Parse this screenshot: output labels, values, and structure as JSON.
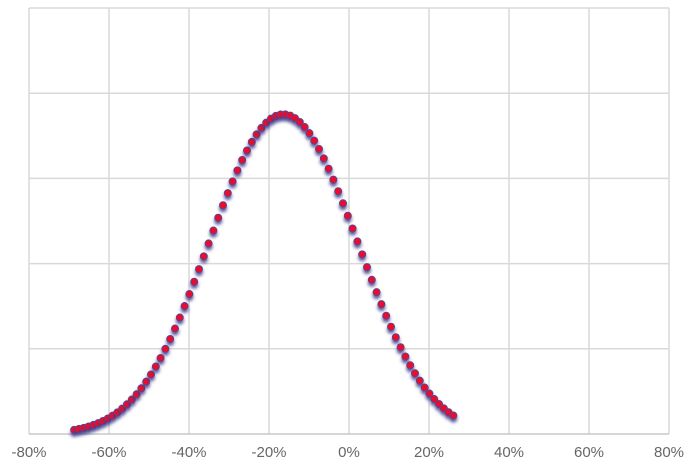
{
  "chart_data": {
    "type": "scatter",
    "title": "",
    "xlabel": "",
    "ylabel": "",
    "xlim": [
      -0.8,
      0.8
    ],
    "ylim": [
      0,
      1
    ],
    "x_ticks": [
      {
        "value": -0.8,
        "label": "-80%"
      },
      {
        "value": -0.6,
        "label": "-60%"
      },
      {
        "value": -0.4,
        "label": "-40%"
      },
      {
        "value": -0.2,
        "label": "-20%"
      },
      {
        "value": 0.0,
        "label": "0%"
      },
      {
        "value": 0.2,
        "label": "20%"
      },
      {
        "value": 0.4,
        "label": "40%"
      },
      {
        "value": 0.6,
        "label": "60%"
      },
      {
        "value": 0.8,
        "label": "80%"
      }
    ],
    "y_gridlines": [
      0,
      0.2,
      0.4,
      0.6,
      0.8,
      1.0
    ],
    "y_tick_labels_visible": false,
    "grid": true,
    "marker_color": "#e8112d",
    "marker_edge_color": "#4a4a9c",
    "gridline_color": "#d9d9d9",
    "series": [
      {
        "x": [
          -0.687,
          -0.675,
          -0.663,
          -0.651,
          -0.639,
          -0.627,
          -0.615,
          -0.603,
          -0.591,
          -0.579,
          -0.567,
          -0.555,
          -0.543,
          -0.531,
          -0.519,
          -0.507,
          -0.495,
          -0.483,
          -0.471,
          -0.459,
          -0.447,
          -0.435,
          -0.423,
          -0.411,
          -0.399,
          -0.387,
          -0.375,
          -0.363,
          -0.351,
          -0.339,
          -0.327,
          -0.315,
          -0.303,
          -0.291,
          -0.279,
          -0.267,
          -0.255,
          -0.243,
          -0.231,
          -0.219,
          -0.207,
          -0.195,
          -0.183,
          -0.171,
          -0.159,
          -0.147,
          -0.135,
          -0.123,
          -0.111,
          -0.099,
          -0.087,
          -0.075,
          -0.063,
          -0.051,
          -0.039,
          -0.027,
          -0.015,
          -0.003,
          0.009,
          0.021,
          0.033,
          0.045,
          0.057,
          0.069,
          0.081,
          0.093,
          0.105,
          0.117,
          0.129,
          0.141,
          0.153,
          0.165,
          0.177,
          0.189,
          0.201,
          0.213,
          0.225,
          0.237,
          0.249,
          0.261
        ],
        "y": [
          0.0097,
          0.0119,
          0.0145,
          0.0176,
          0.0213,
          0.0256,
          0.0306,
          0.0365,
          0.0432,
          0.0509,
          0.0597,
          0.0697,
          0.0809,
          0.0934,
          0.1074,
          0.1228,
          0.1398,
          0.1584,
          0.1784,
          0.2,
          0.2231,
          0.2476,
          0.2734,
          0.3004,
          0.3285,
          0.3574,
          0.387,
          0.4171,
          0.4474,
          0.4776,
          0.5076,
          0.537,
          0.5655,
          0.5929,
          0.6189,
          0.6432,
          0.6655,
          0.6857,
          0.7034,
          0.7185,
          0.7308,
          0.7403,
          0.7467,
          0.75,
          0.7502,
          0.7474,
          0.7414,
          0.7325,
          0.7207,
          0.7062,
          0.6888,
          0.669,
          0.647,
          0.6229,
          0.5971,
          0.5699,
          0.5416,
          0.5123,
          0.4824,
          0.4521,
          0.4218,
          0.3917,
          0.362,
          0.333,
          0.3048,
          0.2777,
          0.2518,
          0.2271,
          0.2037,
          0.1819,
          0.1614,
          0.1425,
          0.1252,
          0.1093,
          0.095,
          0.0821,
          0.0705,
          0.0602,
          0.0511,
          0.0433
        ]
      }
    ]
  }
}
